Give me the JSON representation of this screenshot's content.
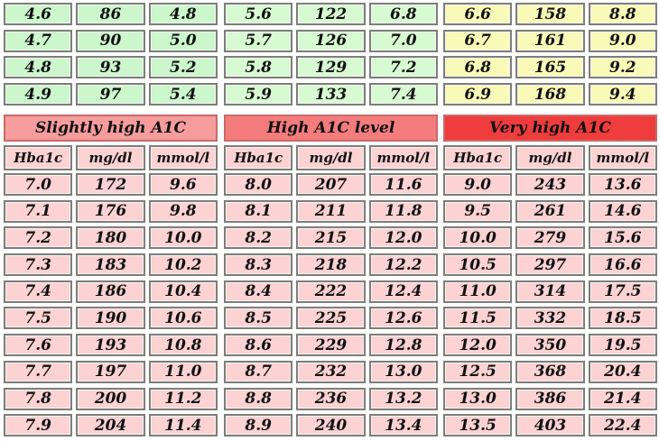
{
  "top_panels": [
    {
      "color": "#ccf6cc",
      "rows": [
        [
          "4.6",
          "86",
          "4.8"
        ],
        [
          "4.7",
          "90",
          "5.0"
        ],
        [
          "4.8",
          "93",
          "5.2"
        ],
        [
          "4.9",
          "97",
          "5.4"
        ]
      ]
    },
    {
      "color": "#d8fad2",
      "rows": [
        [
          "5.6",
          "122",
          "6.8"
        ],
        [
          "5.7",
          "126",
          "7.0"
        ],
        [
          "5.8",
          "129",
          "7.2"
        ],
        [
          "5.9",
          "133",
          "7.4"
        ]
      ]
    },
    {
      "color": "#fafab8",
      "rows": [
        [
          "6.6",
          "158",
          "8.8"
        ],
        [
          "6.7",
          "161",
          "9.0"
        ],
        [
          "6.8",
          "165",
          "9.2"
        ],
        [
          "6.9",
          "168",
          "9.4"
        ]
      ]
    }
  ],
  "column_headers": [
    "Hba1c",
    "mg/dl",
    "mmol/l"
  ],
  "cell_color": "#fcd2d2",
  "bottom_panels": [
    {
      "title": "Slightly high A1C",
      "title_color": "#f69c9c",
      "rows": [
        [
          "7.0",
          "172",
          "9.6"
        ],
        [
          "7.1",
          "176",
          "9.8"
        ],
        [
          "7.2",
          "180",
          "10.0"
        ],
        [
          "7.3",
          "183",
          "10.2"
        ],
        [
          "7.4",
          "186",
          "10.4"
        ],
        [
          "7.5",
          "190",
          "10.6"
        ],
        [
          "7.6",
          "193",
          "10.8"
        ],
        [
          "7.7",
          "197",
          "11.0"
        ],
        [
          "7.8",
          "200",
          "11.2"
        ],
        [
          "7.9",
          "204",
          "11.4"
        ]
      ]
    },
    {
      "title": "High A1C level",
      "title_color": "#f57c7c",
      "rows": [
        [
          "8.0",
          "207",
          "11.6"
        ],
        [
          "8.1",
          "211",
          "11.8"
        ],
        [
          "8.2",
          "215",
          "12.0"
        ],
        [
          "8.3",
          "218",
          "12.2"
        ],
        [
          "8.4",
          "222",
          "12.4"
        ],
        [
          "8.5",
          "225",
          "12.6"
        ],
        [
          "8.6",
          "229",
          "12.8"
        ],
        [
          "8.7",
          "232",
          "13.0"
        ],
        [
          "8.8",
          "236",
          "13.2"
        ],
        [
          "8.9",
          "240",
          "13.4"
        ]
      ]
    },
    {
      "title": "Very high A1C",
      "title_color": "#ef3c3c",
      "rows": [
        [
          "9.0",
          "243",
          "13.6"
        ],
        [
          "9.5",
          "261",
          "14.6"
        ],
        [
          "10.0",
          "279",
          "15.6"
        ],
        [
          "10.5",
          "297",
          "16.6"
        ],
        [
          "11.0",
          "314",
          "17.5"
        ],
        [
          "11.5",
          "332",
          "18.5"
        ],
        [
          "12.0",
          "350",
          "19.5"
        ],
        [
          "12.5",
          "368",
          "20.4"
        ],
        [
          "13.0",
          "386",
          "21.4"
        ],
        [
          "13.5",
          "403",
          "22.4"
        ]
      ]
    }
  ]
}
